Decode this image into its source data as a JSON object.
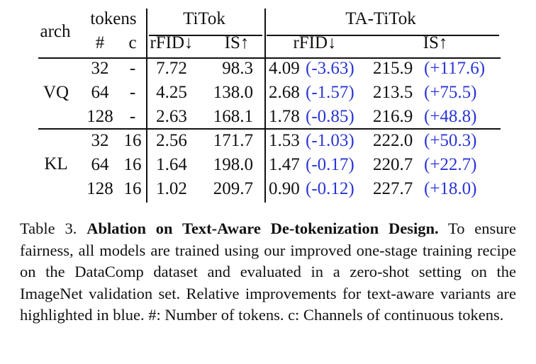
{
  "table": {
    "header": {
      "arch": "arch",
      "tokens": "tokens",
      "hash": "#",
      "c": "c",
      "titok": "TiTok",
      "tatitok": "TA-TiTok",
      "rfid": "rFID↓",
      "is": "IS↑"
    },
    "groups": [
      {
        "arch": "VQ",
        "rows": [
          {
            "tokens": "32",
            "c": "-",
            "titok_rfid": "7.72",
            "titok_is": "98.3",
            "ta_rfid": "4.09",
            "ta_rfid_delta": "(-3.63)",
            "ta_is": "215.9",
            "ta_is_delta": "(+117.6)"
          },
          {
            "tokens": "64",
            "c": "-",
            "titok_rfid": "4.25",
            "titok_is": "138.0",
            "ta_rfid": "2.68",
            "ta_rfid_delta": "(-1.57)",
            "ta_is": "213.5",
            "ta_is_delta": "(+75.5)"
          },
          {
            "tokens": "128",
            "c": "-",
            "titok_rfid": "2.63",
            "titok_is": "168.1",
            "ta_rfid": "1.78",
            "ta_rfid_delta": "(-0.85)",
            "ta_is": "216.9",
            "ta_is_delta": "(+48.8)"
          }
        ]
      },
      {
        "arch": "KL",
        "rows": [
          {
            "tokens": "32",
            "c": "16",
            "titok_rfid": "2.56",
            "titok_is": "171.7",
            "ta_rfid": "1.53",
            "ta_rfid_delta": "(-1.03)",
            "ta_is": "222.0",
            "ta_is_delta": "(+50.3)"
          },
          {
            "tokens": "64",
            "c": "16",
            "titok_rfid": "1.64",
            "titok_is": "198.0",
            "ta_rfid": "1.47",
            "ta_rfid_delta": "(-0.17)",
            "ta_is": "220.7",
            "ta_is_delta": "(+22.7)"
          },
          {
            "tokens": "128",
            "c": "16",
            "titok_rfid": "1.02",
            "titok_is": "209.7",
            "ta_rfid": "0.90",
            "ta_rfid_delta": "(-0.12)",
            "ta_is": "227.7",
            "ta_is_delta": "(+18.0)"
          }
        ]
      }
    ]
  },
  "caption": {
    "label": "Table 3.",
    "title": "Ablation on Text-Aware De-tokenization Design.",
    "body": "To ensure fairness, all models are trained using our improved one-stage training recipe on the DataComp dataset and evaluated in a zero-shot setting on the ImageNet validation set. Relative improvements for text-aware variants are highlighted in blue. #: Number of tokens. c: Channels of continuous tokens."
  },
  "colors": {
    "highlight": "#2a35d6",
    "text": "#111111"
  }
}
